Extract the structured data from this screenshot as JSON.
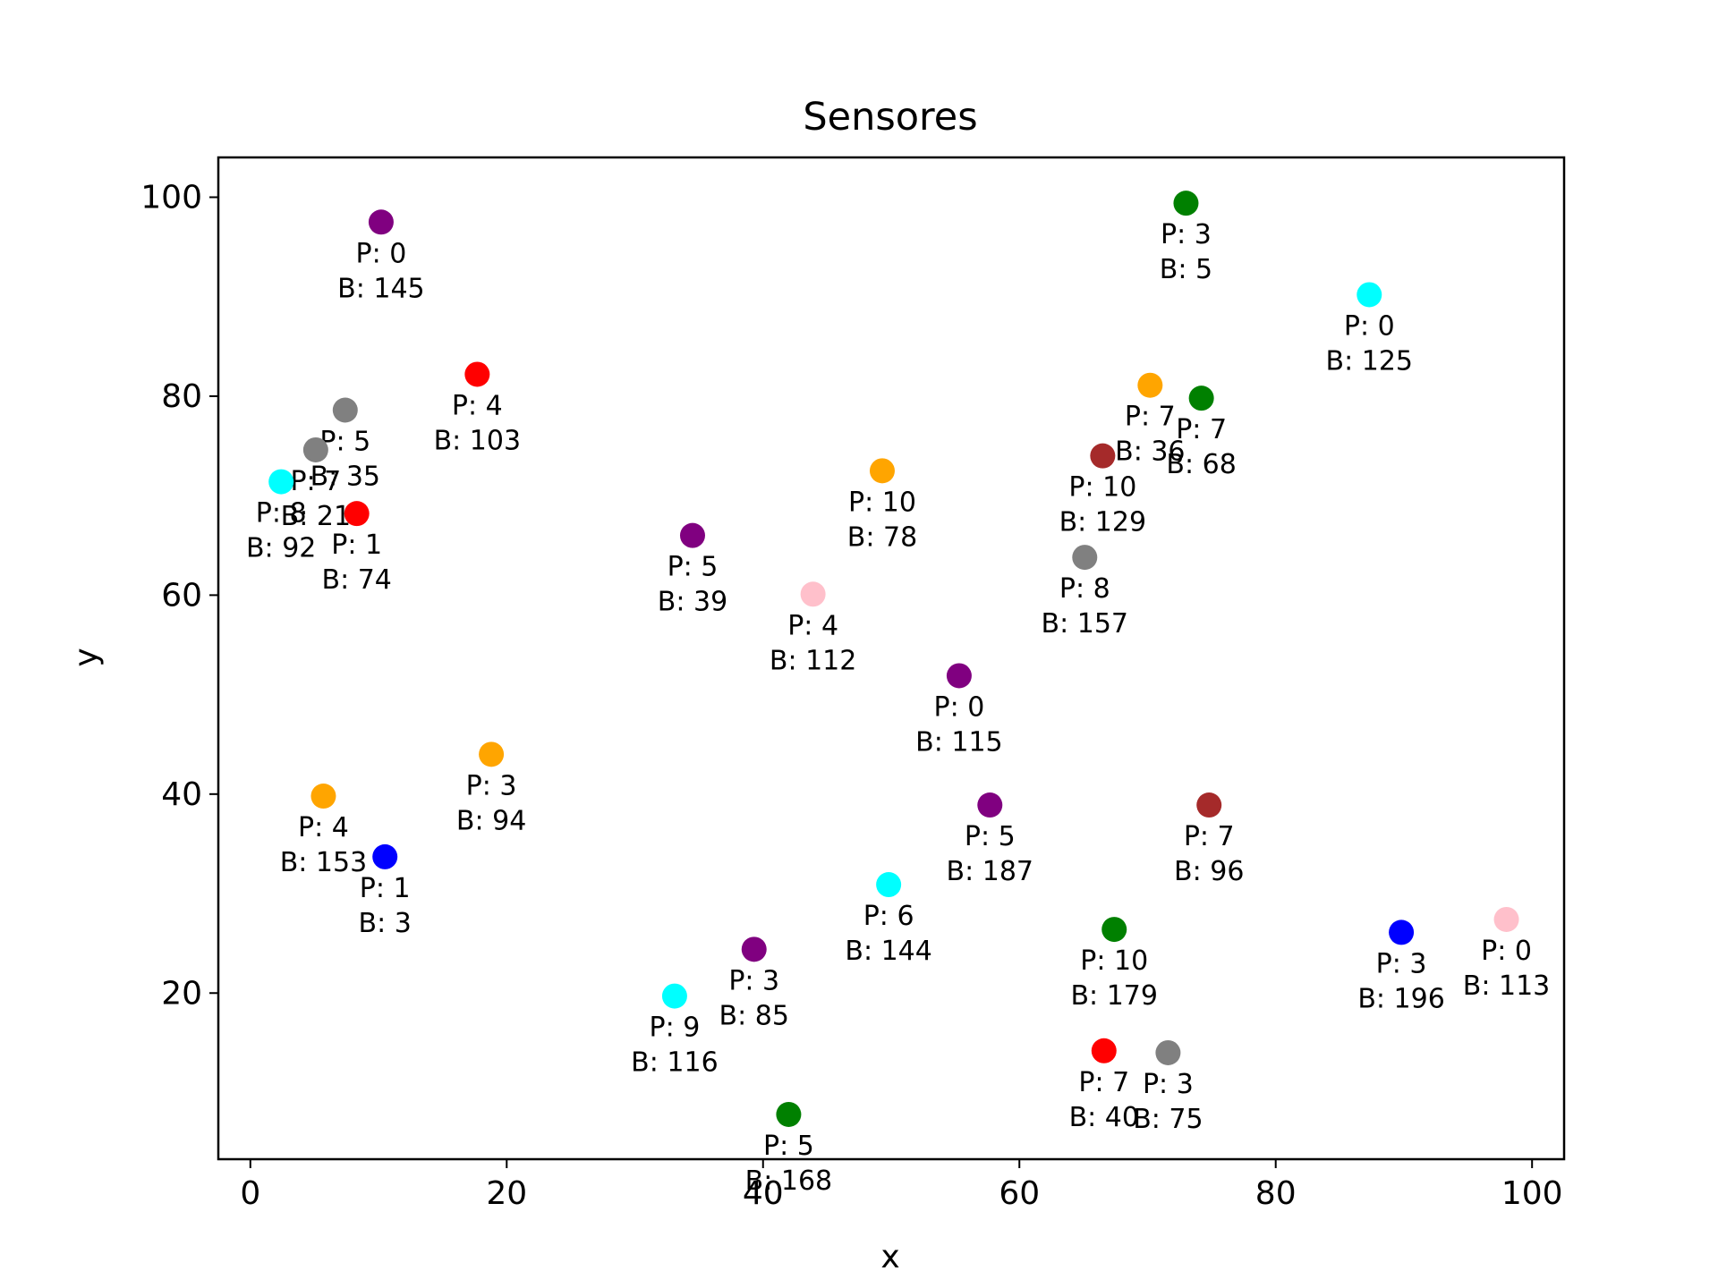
{
  "chart_data": {
    "type": "scatter",
    "title": "Sensores",
    "xlabel": "x",
    "ylabel": "y",
    "xlim": [
      -2.5,
      102.5
    ],
    "ylim": [
      3.3,
      104
    ],
    "xticks": [
      0,
      20,
      40,
      60,
      80,
      100
    ],
    "yticks": [
      20,
      40,
      60,
      80,
      100
    ],
    "grid": false,
    "legend": "none",
    "points": [
      {
        "x": 10.2,
        "y": 97.5,
        "color": "#800080",
        "p": "P: 0",
        "b": "B: 145"
      },
      {
        "x": 73.0,
        "y": 99.4,
        "color": "#008000",
        "p": "P: 3",
        "b": "B: 5"
      },
      {
        "x": 87.3,
        "y": 90.2,
        "color": "#00ffff",
        "p": "P: 0",
        "b": "B: 125"
      },
      {
        "x": 17.7,
        "y": 82.2,
        "color": "#ff0000",
        "p": "P: 4",
        "b": "B: 103"
      },
      {
        "x": 7.4,
        "y": 78.6,
        "color": "#808080",
        "p": "P: 5",
        "b": "B: 35"
      },
      {
        "x": 5.1,
        "y": 74.6,
        "color": "#808080",
        "p": "P: 7",
        "b": "B: 21"
      },
      {
        "x": 2.4,
        "y": 71.4,
        "color": "#00ffff",
        "p": "P: 8",
        "b": "B: 92"
      },
      {
        "x": 8.3,
        "y": 68.2,
        "color": "#ff0000",
        "p": "P: 1",
        "b": "B: 74"
      },
      {
        "x": 70.2,
        "y": 81.1,
        "color": "#ffa500",
        "p": "P: 7",
        "b": "B: 36"
      },
      {
        "x": 74.2,
        "y": 79.8,
        "color": "#008000",
        "p": "P: 7",
        "b": "B: 68"
      },
      {
        "x": 66.5,
        "y": 74.0,
        "color": "#a52a2a",
        "p": "P: 10",
        "b": "B: 129"
      },
      {
        "x": 49.3,
        "y": 72.5,
        "color": "#ffa500",
        "p": "P: 10",
        "b": "B: 78"
      },
      {
        "x": 34.5,
        "y": 66.0,
        "color": "#800080",
        "p": "P: 5",
        "b": "B: 39"
      },
      {
        "x": 65.1,
        "y": 63.8,
        "color": "#808080",
        "p": "P: 8",
        "b": "B: 157"
      },
      {
        "x": 43.9,
        "y": 60.1,
        "color": "#ffc0cb",
        "p": "P: 4",
        "b": "B: 112"
      },
      {
        "x": 55.3,
        "y": 51.9,
        "color": "#800080",
        "p": "P: 0",
        "b": "B: 115"
      },
      {
        "x": 18.8,
        "y": 44.0,
        "color": "#ffa500",
        "p": "P: 3",
        "b": "B: 94"
      },
      {
        "x": 5.7,
        "y": 39.8,
        "color": "#ffa500",
        "p": "P: 4",
        "b": "B: 153"
      },
      {
        "x": 57.7,
        "y": 38.9,
        "color": "#800080",
        "p": "P: 5",
        "b": "B: 187"
      },
      {
        "x": 74.8,
        "y": 38.9,
        "color": "#a52a2a",
        "p": "P: 7",
        "b": "B: 96"
      },
      {
        "x": 10.5,
        "y": 33.7,
        "color": "#0000ff",
        "p": "P: 1",
        "b": "B: 3"
      },
      {
        "x": 49.8,
        "y": 30.9,
        "color": "#00ffff",
        "p": "P: 6",
        "b": "B: 144"
      },
      {
        "x": 98.0,
        "y": 27.4,
        "color": "#ffc0cb",
        "p": "P: 0",
        "b": "B: 113"
      },
      {
        "x": 67.4,
        "y": 26.4,
        "color": "#008000",
        "p": "P: 10",
        "b": "B: 179"
      },
      {
        "x": 89.8,
        "y": 26.1,
        "color": "#0000ff",
        "p": "P: 3",
        "b": "B: 196"
      },
      {
        "x": 39.3,
        "y": 24.4,
        "color": "#800080",
        "p": "P: 3",
        "b": "B: 85"
      },
      {
        "x": 33.1,
        "y": 19.7,
        "color": "#00ffff",
        "p": "P: 9",
        "b": "B: 116"
      },
      {
        "x": 66.6,
        "y": 14.2,
        "color": "#ff0000",
        "p": "P: 7",
        "b": "B: 40"
      },
      {
        "x": 71.6,
        "y": 14.0,
        "color": "#808080",
        "p": "P: 3",
        "b": "B: 75"
      },
      {
        "x": 42.0,
        "y": 7.8,
        "color": "#008000",
        "p": "P: 5",
        "b": "B: 168"
      }
    ]
  }
}
